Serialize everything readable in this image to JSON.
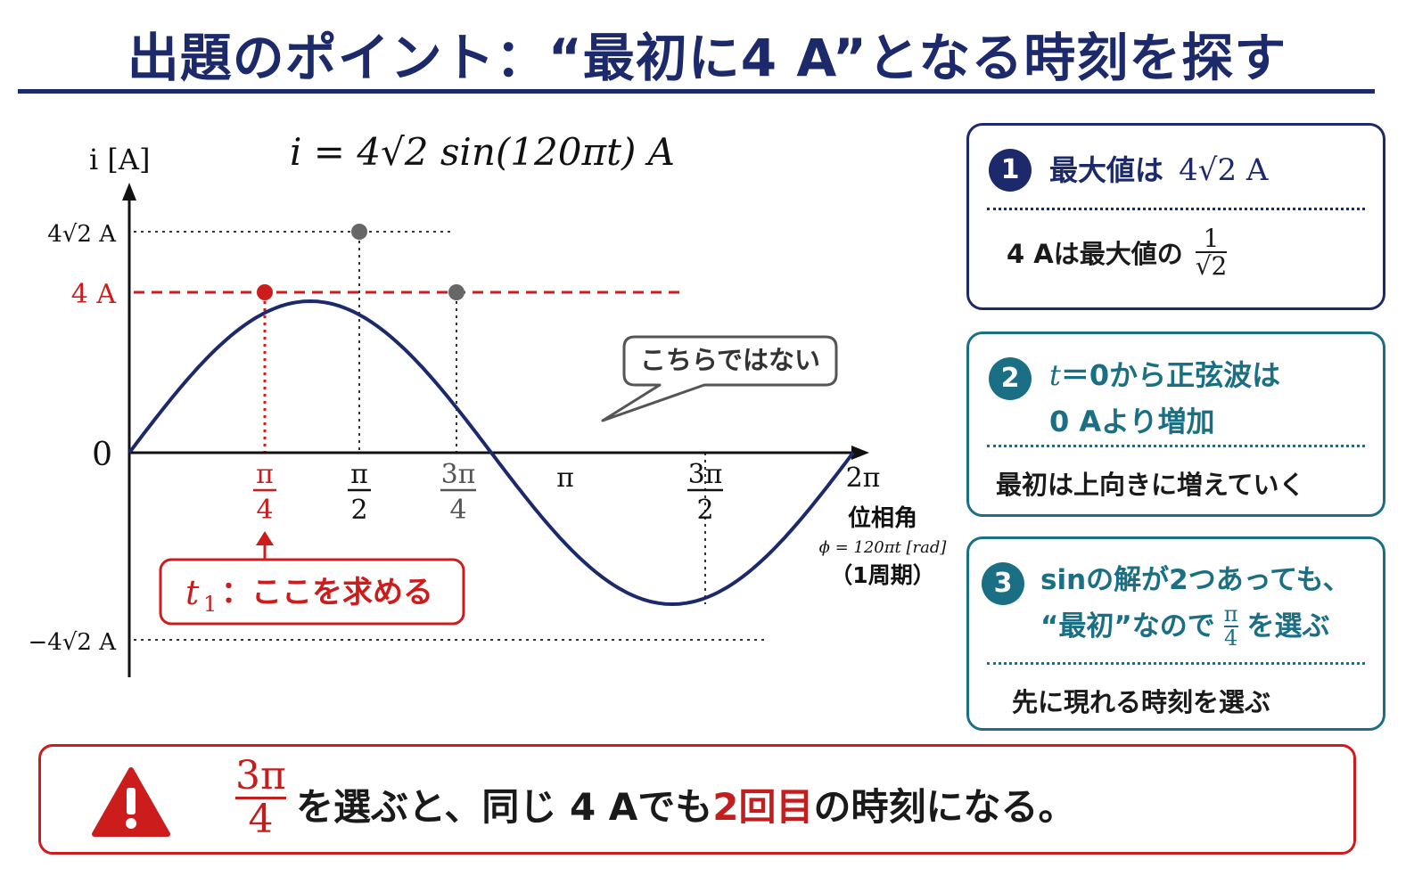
{
  "title": "出題のポイント：“最初に4 A”となる時刻を探す",
  "graph": {
    "equation": "i = 4√2 sin(120πt)  A",
    "y_axis_label": "i [A]",
    "y_ticks": {
      "max": "4√2  A",
      "four": "4 A",
      "zero": "0",
      "min": "−4√2  A"
    },
    "x_ticks": [
      {
        "num": "π",
        "den": "4"
      },
      {
        "num": "π",
        "den": "2"
      },
      {
        "num": "3π",
        "den": "4"
      },
      {
        "text": "π"
      },
      {
        "num": "3π",
        "den": "2"
      },
      {
        "text": "2π"
      }
    ],
    "x_axis_label": "位相角",
    "x_axis_formula": "ϕ = 120πt [rad]",
    "x_axis_note": "（1周期）",
    "callout_gray": "こちらではない",
    "callout_red_var": "t",
    "callout_red_sub": "1",
    "callout_red_text": "：ここを求める",
    "colors": {
      "navy": "#1c2a6b",
      "red": "#cc1c1c",
      "gray": "#666666"
    }
  },
  "cards": [
    {
      "badge": "1",
      "head": "最大値は",
      "head_math": "4√2  A",
      "sub_text": "4 Aは最大値の",
      "sub_frac_num": "1",
      "sub_frac_den": "√2"
    },
    {
      "badge": "2",
      "head_math": "t",
      "head_line1": "＝0から正弦波は",
      "head_line2": "0 Aより増加",
      "sub_text": "最初は上向きに増えていく"
    },
    {
      "badge": "3",
      "head_line1": "sinの解が2つあっても、",
      "head_line2_a": "“最初”なので",
      "head_frac_num": "π",
      "head_frac_den": "4",
      "head_line2_b": "を選ぶ",
      "sub_text": "先に現れる時刻を選ぶ"
    }
  ],
  "warning": {
    "frac_num": "3π",
    "frac_den": "4",
    "text_a": "を選ぶと、同じ 4 Aでも",
    "text_red": "2回目",
    "text_b": "の時刻になる。"
  }
}
